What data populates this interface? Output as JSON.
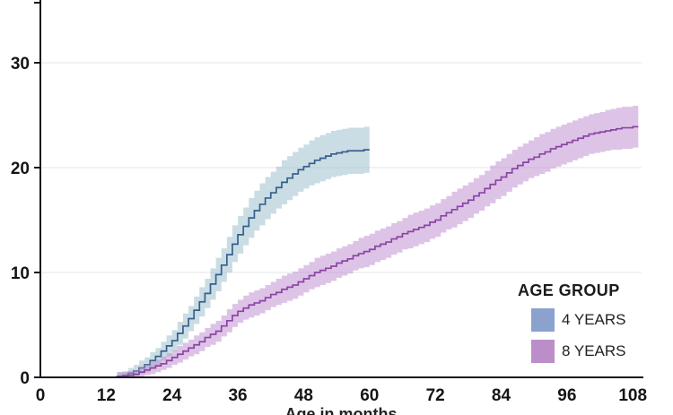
{
  "chart_data": {
    "type": "line",
    "subtype": "step-curves-with-confidence-bands",
    "title": "",
    "xlabel": "Age in months",
    "ylabel": "",
    "grid": "horizontal",
    "x_axis": {
      "min": 0,
      "max": 109.7,
      "ticks": [
        {
          "value": 0,
          "label": "0"
        },
        {
          "value": 12,
          "label": "12"
        },
        {
          "value": 24,
          "label": "24"
        },
        {
          "value": 36,
          "label": "36"
        },
        {
          "value": 48,
          "label": "48"
        },
        {
          "value": 60,
          "label": "60"
        },
        {
          "value": 72,
          "label": "72"
        },
        {
          "value": 84,
          "label": "84"
        },
        {
          "value": 96,
          "label": "96"
        },
        {
          "value": 108,
          "label": "108"
        }
      ]
    },
    "y_axis": {
      "min": 0,
      "max": 36,
      "ticks": [
        {
          "value": 0,
          "label": "0"
        },
        {
          "value": 10,
          "label": "10"
        },
        {
          "value": 20,
          "label": "20"
        },
        {
          "value": 30,
          "label": "30"
        }
      ]
    },
    "legend": {
      "title": "AGE GROUP",
      "position": "right-middle"
    },
    "series": [
      {
        "name": "4 YEARS",
        "start_month": 0,
        "step_months": 1,
        "line_color": "#35608D",
        "band_color": "#97BBC9",
        "band_opacity": 0.5,
        "legend_color": "#8BA2CF",
        "values": [
          0,
          0,
          0,
          0,
          0,
          0,
          0,
          0,
          0,
          0,
          0,
          0,
          0,
          0,
          0.1,
          0.2,
          0.4,
          0.6,
          0.9,
          1.2,
          1.6,
          2,
          2.5,
          3,
          3.5,
          4.2,
          4.9,
          5.6,
          6.4,
          7.2,
          8,
          8.9,
          9.8,
          10.7,
          11.7,
          12.7,
          13.6,
          14.4,
          15.2,
          15.9,
          16.5,
          17.1,
          17.6,
          18.1,
          18.6,
          19,
          19.4,
          19.8,
          20.1,
          20.4,
          20.7,
          20.9,
          21.1,
          21.3,
          21.4,
          21.5,
          21.6,
          21.6,
          21.6,
          21.7,
          21.7
        ],
        "lower": [
          0,
          0,
          0,
          0,
          0,
          0,
          0,
          0,
          0,
          0,
          0,
          0,
          0,
          0,
          0,
          0,
          0,
          0,
          0.3,
          0.5,
          0.8,
          1.2,
          1.6,
          2,
          2.5,
          3.1,
          3.7,
          4.4,
          5.1,
          5.8,
          6.6,
          7.4,
          8.2,
          9.1,
          10,
          11,
          11.8,
          12.6,
          13.3,
          14,
          14.5,
          15.1,
          15.6,
          16.1,
          16.5,
          16.9,
          17.3,
          17.7,
          18,
          18.3,
          18.5,
          18.7,
          18.9,
          19.1,
          19.2,
          19.3,
          19.4,
          19.4,
          19.4,
          19.5,
          19.5
        ],
        "upper": [
          0,
          0,
          0,
          0,
          0,
          0,
          0,
          0,
          0,
          0,
          0,
          0,
          0,
          0,
          0.5,
          0.6,
          0.9,
          1.2,
          1.6,
          1.9,
          2.4,
          2.8,
          3.4,
          4,
          4.5,
          5.3,
          6.1,
          6.8,
          7.7,
          8.6,
          9.4,
          10.4,
          11.4,
          12.3,
          13.4,
          14.5,
          15.4,
          16.2,
          17.1,
          17.8,
          18.5,
          19.1,
          19.6,
          20.1,
          20.7,
          21.1,
          21.5,
          21.9,
          22.2,
          22.6,
          22.9,
          23.1,
          23.3,
          23.5,
          23.6,
          23.7,
          23.8,
          23.8,
          23.8,
          23.9,
          23.9
        ]
      },
      {
        "name": "8 YEARS",
        "start_month": 0,
        "step_months": 1,
        "line_color": "#8B44A5",
        "band_color": "#BB89CD",
        "band_opacity": 0.5,
        "legend_color": "#BB8EC9",
        "values": [
          0,
          0,
          0,
          0,
          0,
          0,
          0,
          0,
          0,
          0,
          0,
          0,
          0,
          0,
          0.1,
          0.1,
          0.2,
          0.3,
          0.5,
          0.7,
          0.9,
          1.1,
          1.3,
          1.6,
          1.9,
          2.2,
          2.5,
          2.8,
          3.1,
          3.4,
          3.8,
          4.1,
          4.4,
          4.9,
          5.4,
          5.9,
          6.3,
          6.6,
          6.9,
          7.1,
          7.3,
          7.6,
          7.9,
          8.1,
          8.4,
          8.6,
          8.8,
          9.1,
          9.4,
          9.7,
          10,
          10.2,
          10.4,
          10.6,
          10.9,
          11.1,
          11.3,
          11.6,
          11.8,
          12,
          12.2,
          12.5,
          12.7,
          12.9,
          13.2,
          13.4,
          13.7,
          13.9,
          14.1,
          14.3,
          14.5,
          14.8,
          15,
          15.4,
          15.7,
          16,
          16.3,
          16.6,
          16.9,
          17.3,
          17.6,
          18,
          18.4,
          18.8,
          19.1,
          19.5,
          19.9,
          20.2,
          20.5,
          20.8,
          21,
          21.3,
          21.5,
          21.8,
          22,
          22.2,
          22.4,
          22.6,
          22.8,
          23,
          23.2,
          23.3,
          23.4,
          23.5,
          23.6,
          23.7,
          23.8,
          23.8,
          23.9,
          23.9
        ],
        "lower": [
          0,
          0,
          0,
          0,
          0,
          0,
          0,
          0,
          0,
          0,
          0,
          0,
          0,
          0,
          0,
          0,
          0,
          0,
          0,
          0.2,
          0.3,
          0.5,
          0.7,
          0.9,
          1.2,
          1.4,
          1.7,
          2,
          2.2,
          2.5,
          2.9,
          3.1,
          3.4,
          3.9,
          4.3,
          4.8,
          5.2,
          5.5,
          5.7,
          5.9,
          6.1,
          6.4,
          6.7,
          6.9,
          7.1,
          7.3,
          7.5,
          7.8,
          8.1,
          8.4,
          8.6,
          8.8,
          9,
          9.2,
          9.5,
          9.7,
          9.9,
          10.2,
          10.4,
          10.5,
          10.7,
          11,
          11.2,
          11.4,
          11.7,
          11.9,
          12.2,
          12.3,
          12.5,
          12.7,
          12.9,
          13.2,
          13.4,
          13.8,
          14.1,
          14.3,
          14.6,
          14.9,
          15.2,
          15.6,
          15.9,
          16.3,
          16.6,
          17,
          17.3,
          17.7,
          18.1,
          18.4,
          18.7,
          19,
          19.2,
          19.4,
          19.6,
          19.9,
          20.1,
          20.3,
          20.5,
          20.7,
          20.9,
          21.1,
          21.3,
          21.4,
          21.5,
          21.6,
          21.7,
          21.7,
          21.8,
          21.8,
          21.9,
          21.9
        ],
        "upper": [
          0,
          0,
          0,
          0,
          0,
          0,
          0,
          0,
          0,
          0,
          0,
          0,
          0,
          0,
          0.5,
          0.5,
          0.6,
          0.7,
          1,
          1.2,
          1.5,
          1.7,
          2,
          2.3,
          2.6,
          3,
          3.3,
          3.6,
          4,
          4.3,
          4.7,
          5.1,
          5.4,
          5.9,
          6.5,
          7,
          7.4,
          7.8,
          8.1,
          8.3,
          8.5,
          8.8,
          9.1,
          9.4,
          9.7,
          9.9,
          10.1,
          10.4,
          10.7,
          11,
          11.4,
          11.6,
          11.8,
          12,
          12.3,
          12.5,
          12.7,
          13,
          13.3,
          13.5,
          13.7,
          14,
          14.2,
          14.4,
          14.7,
          14.9,
          15.2,
          15.5,
          15.7,
          15.9,
          16.1,
          16.4,
          16.6,
          17,
          17.3,
          17.7,
          18,
          18.3,
          18.6,
          19,
          19.3,
          19.7,
          20.2,
          20.6,
          20.9,
          21.3,
          21.7,
          22,
          22.3,
          22.6,
          22.9,
          23.2,
          23.4,
          23.7,
          23.9,
          24.1,
          24.3,
          24.5,
          24.7,
          24.9,
          25.1,
          25.2,
          25.3,
          25.5,
          25.6,
          25.7,
          25.8,
          25.8,
          25.9,
          25.9
        ]
      }
    ]
  },
  "colors": {
    "axis": "#15151F",
    "grid": "#E4E4E4",
    "tick_text": "#151515"
  }
}
